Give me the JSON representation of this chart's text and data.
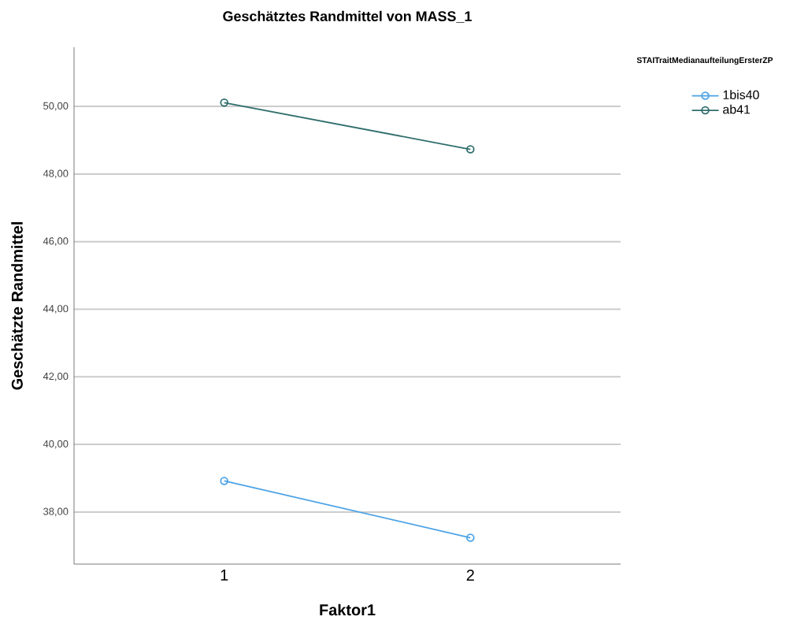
{
  "chart_data": {
    "type": "line",
    "title": "Geschätztes Randmittel von MASS_1",
    "xlabel": "Faktor1",
    "ylabel": "Geschätzte Randmittel",
    "legend_title": "STAITraitMedianaufteilungErsterZP",
    "categories": [
      "1",
      "2"
    ],
    "series": [
      {
        "name": "1bis40",
        "color": "#4da3e6",
        "values": [
          38.92,
          37.24
        ]
      },
      {
        "name": "ab41",
        "color": "#2f6e6c",
        "values": [
          50.11,
          48.73
        ]
      }
    ],
    "ylim": [
      36.46,
      51.75
    ],
    "yticks": [
      {
        "value": 38,
        "label": "38,00"
      },
      {
        "value": 40,
        "label": "40,00"
      },
      {
        "value": 42,
        "label": "42,00"
      },
      {
        "value": 44,
        "label": "44,00"
      },
      {
        "value": 46,
        "label": "46,00"
      },
      {
        "value": 48,
        "label": "48,00"
      },
      {
        "value": 50,
        "label": "50,00"
      }
    ],
    "grid": "y",
    "legend": "top right",
    "marker": "circle",
    "line_style": "solid"
  }
}
